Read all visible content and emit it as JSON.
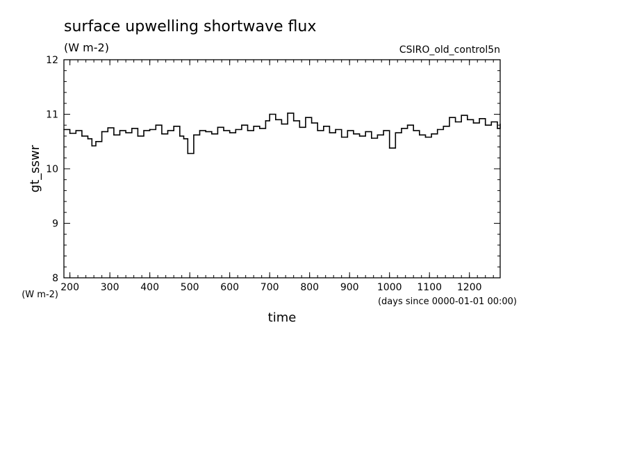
{
  "chart_data": {
    "type": "line",
    "title": "surface upwelling shortwave flux",
    "subtitle": "(W m-2)",
    "run_label": "CSIRO_old_control5n",
    "xlabel": "time",
    "x_units": "(days since 0000-01-01 00:00)",
    "ylabel": "gt_sswr",
    "y_units": "(W m-2)",
    "xlim": [
      185,
      1277
    ],
    "ylim": [
      8,
      12
    ],
    "xticks": [
      200,
      300,
      400,
      500,
      600,
      700,
      800,
      900,
      1000,
      1100,
      1200
    ],
    "yticks": [
      8,
      9,
      10,
      11,
      12
    ],
    "grid": false,
    "series": [
      {
        "color": "#000000",
        "x": [
          185,
          200,
          215,
          230,
          245,
          255,
          265,
          280,
          295,
          310,
          325,
          340,
          355,
          370,
          385,
          400,
          415,
          430,
          445,
          460,
          475,
          485,
          495,
          510,
          525,
          540,
          555,
          570,
          585,
          600,
          615,
          630,
          645,
          660,
          675,
          690,
          700,
          715,
          730,
          745,
          760,
          775,
          790,
          805,
          820,
          835,
          850,
          865,
          880,
          895,
          910,
          925,
          940,
          955,
          970,
          985,
          1000,
          1015,
          1030,
          1045,
          1060,
          1075,
          1090,
          1105,
          1120,
          1135,
          1150,
          1165,
          1180,
          1195,
          1210,
          1225,
          1240,
          1255,
          1270,
          1277
        ],
        "y": [
          10.72,
          10.65,
          10.7,
          10.6,
          10.55,
          10.42,
          10.5,
          10.68,
          10.75,
          10.62,
          10.7,
          10.66,
          10.74,
          10.6,
          10.7,
          10.72,
          10.8,
          10.64,
          10.7,
          10.78,
          10.6,
          10.55,
          10.28,
          10.62,
          10.7,
          10.68,
          10.64,
          10.76,
          10.7,
          10.66,
          10.72,
          10.8,
          10.7,
          10.78,
          10.74,
          10.88,
          11.0,
          10.9,
          10.82,
          11.02,
          10.88,
          10.76,
          10.94,
          10.84,
          10.7,
          10.78,
          10.66,
          10.72,
          10.58,
          10.7,
          10.64,
          10.6,
          10.68,
          10.56,
          10.62,
          10.7,
          10.38,
          10.66,
          10.74,
          10.8,
          10.7,
          10.62,
          10.58,
          10.64,
          10.72,
          10.78,
          10.94,
          10.86,
          10.98,
          10.9,
          10.84,
          10.92,
          10.8,
          10.86,
          10.74,
          10.82
        ]
      }
    ]
  }
}
